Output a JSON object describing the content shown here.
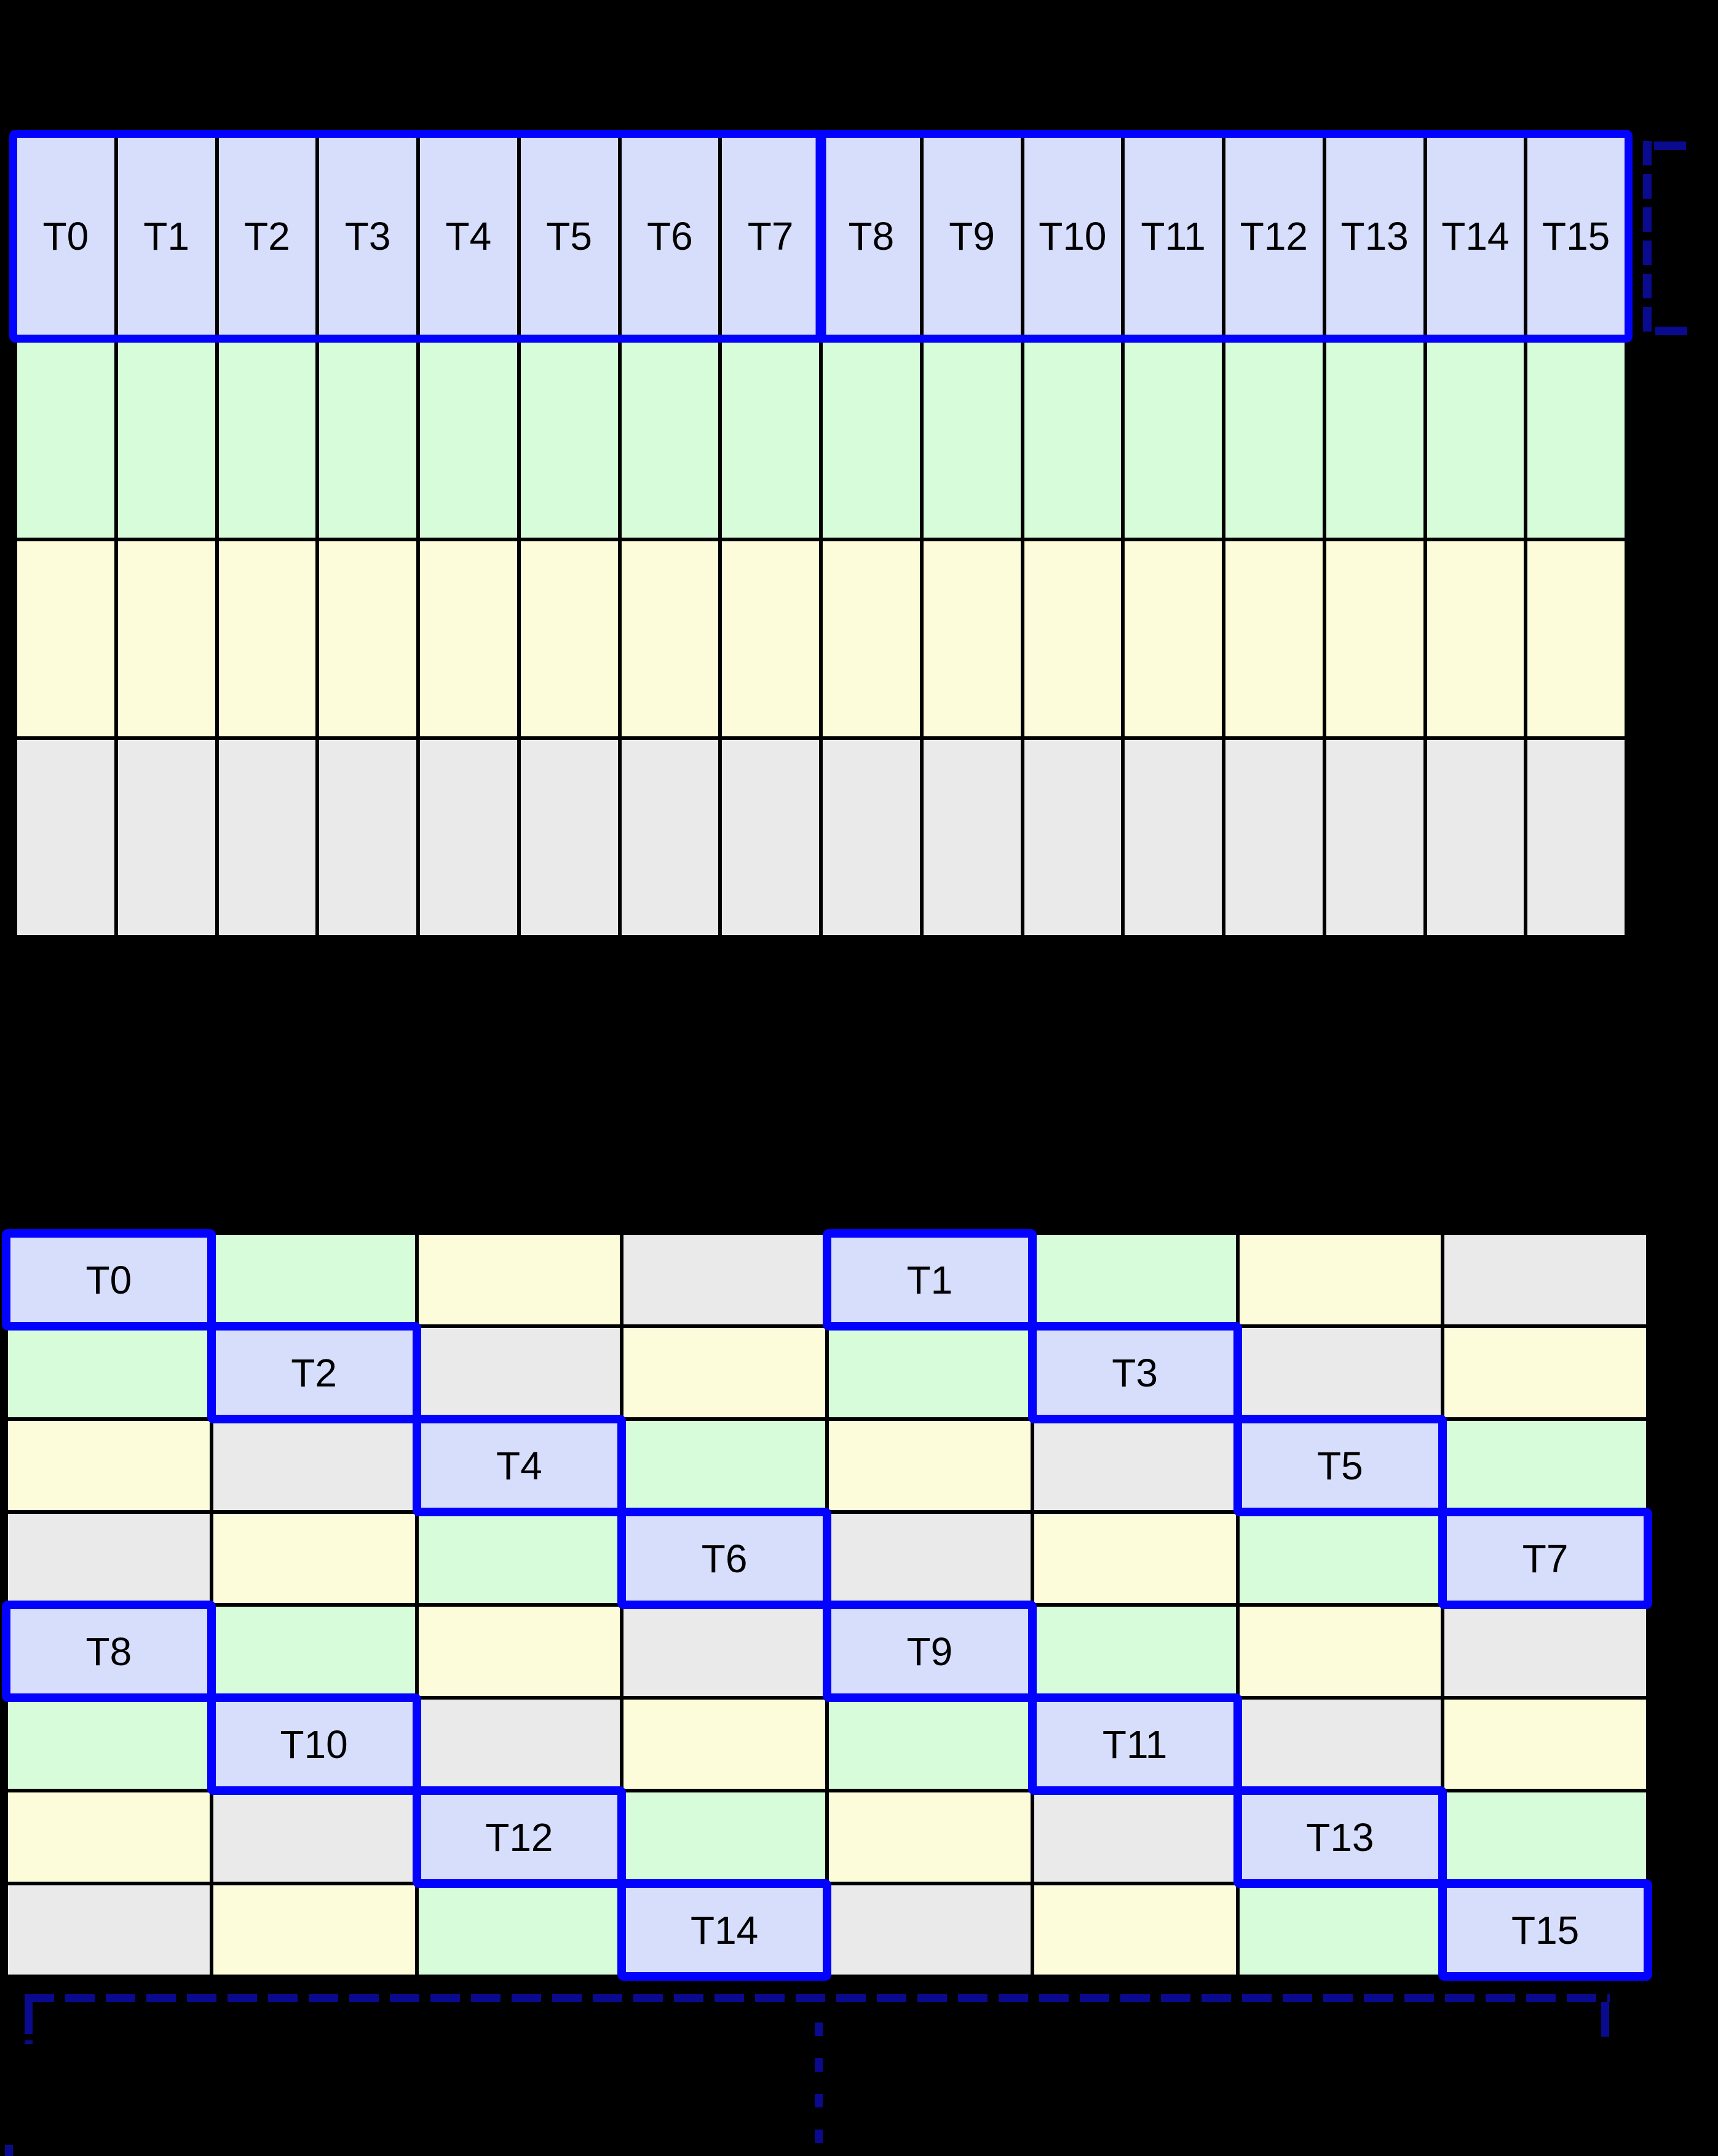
{
  "diagram": {
    "background": "#000000",
    "palette": {
      "blue": "#d7defc",
      "green": "#d7fcd9",
      "yellow": "#fcfcda",
      "gray": "#eaeaea",
      "highlight_border": "#0202fe",
      "bracket": "#0a0a8e",
      "grid_line": "#000000",
      "label_color": "#000000"
    },
    "top_grid": {
      "threads": [
        "T0",
        "T1",
        "T2",
        "T3",
        "T4",
        "T5",
        "T6",
        "T7",
        "T8",
        "T9",
        "T10",
        "T11",
        "T12",
        "T13",
        "T14",
        "T15"
      ],
      "thread_groups": [
        8,
        8
      ],
      "memory_row_colors": [
        "green",
        "yellow",
        "gray"
      ]
    },
    "bottom_grid": {
      "rows": [
        [
          {
            "color": "blue",
            "label": "T0"
          },
          {
            "color": "green"
          },
          {
            "color": "yellow"
          },
          {
            "color": "gray"
          },
          {
            "color": "blue",
            "label": "T1"
          },
          {
            "color": "green"
          },
          {
            "color": "yellow"
          },
          {
            "color": "gray"
          }
        ],
        [
          {
            "color": "green"
          },
          {
            "color": "blue",
            "label": "T2"
          },
          {
            "color": "gray"
          },
          {
            "color": "yellow"
          },
          {
            "color": "green"
          },
          {
            "color": "blue",
            "label": "T3"
          },
          {
            "color": "gray"
          },
          {
            "color": "yellow"
          }
        ],
        [
          {
            "color": "yellow"
          },
          {
            "color": "gray"
          },
          {
            "color": "blue",
            "label": "T4"
          },
          {
            "color": "green"
          },
          {
            "color": "yellow"
          },
          {
            "color": "gray"
          },
          {
            "color": "blue",
            "label": "T5"
          },
          {
            "color": "green"
          }
        ],
        [
          {
            "color": "gray"
          },
          {
            "color": "yellow"
          },
          {
            "color": "green"
          },
          {
            "color": "blue",
            "label": "T6"
          },
          {
            "color": "gray"
          },
          {
            "color": "yellow"
          },
          {
            "color": "green"
          },
          {
            "color": "blue",
            "label": "T7"
          }
        ],
        [
          {
            "color": "blue",
            "label": "T8"
          },
          {
            "color": "green"
          },
          {
            "color": "yellow"
          },
          {
            "color": "gray"
          },
          {
            "color": "blue",
            "label": "T9"
          },
          {
            "color": "green"
          },
          {
            "color": "yellow"
          },
          {
            "color": "gray"
          }
        ],
        [
          {
            "color": "green"
          },
          {
            "color": "blue",
            "label": "T10"
          },
          {
            "color": "gray"
          },
          {
            "color": "yellow"
          },
          {
            "color": "green"
          },
          {
            "color": "blue",
            "label": "T11"
          },
          {
            "color": "gray"
          },
          {
            "color": "yellow"
          }
        ],
        [
          {
            "color": "yellow"
          },
          {
            "color": "gray"
          },
          {
            "color": "blue",
            "label": "T12"
          },
          {
            "color": "green"
          },
          {
            "color": "yellow"
          },
          {
            "color": "gray"
          },
          {
            "color": "blue",
            "label": "T13"
          },
          {
            "color": "green"
          }
        ],
        [
          {
            "color": "gray"
          },
          {
            "color": "yellow"
          },
          {
            "color": "green"
          },
          {
            "color": "blue",
            "label": "T14"
          },
          {
            "color": "gray"
          },
          {
            "color": "yellow"
          },
          {
            "color": "green"
          },
          {
            "color": "blue",
            "label": "T15"
          }
        ]
      ]
    }
  }
}
